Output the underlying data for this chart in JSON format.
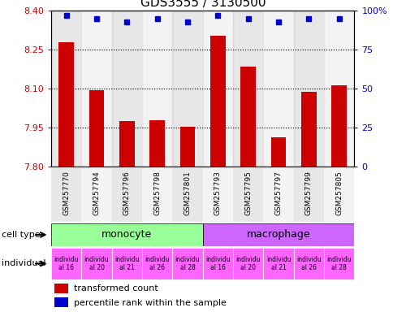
{
  "title": "GDS3555 / 3130500",
  "samples": [
    "GSM257770",
    "GSM257794",
    "GSM257796",
    "GSM257798",
    "GSM257801",
    "GSM257793",
    "GSM257795",
    "GSM257797",
    "GSM257799",
    "GSM257805"
  ],
  "bar_values": [
    8.28,
    8.095,
    7.975,
    7.98,
    7.955,
    8.305,
    8.185,
    7.915,
    8.09,
    8.115
  ],
  "percentile_values": [
    97,
    95,
    93,
    95,
    93,
    97,
    95,
    93,
    95,
    95
  ],
  "bar_color": "#cc0000",
  "dot_color": "#0000cc",
  "ymin": 7.8,
  "ymax": 8.4,
  "y_ticks": [
    7.8,
    7.95,
    8.1,
    8.25,
    8.4
  ],
  "y_right_ticks": [
    0,
    25,
    50,
    75,
    100
  ],
  "cell_type_colors": {
    "monocyte": "#99ff99",
    "macrophage": "#cc66ff"
  },
  "individual_color": "#ff66ff",
  "bar_color_legend": "#cc0000",
  "dot_color_legend": "#0000cc",
  "legend_bar_label": "transformed count",
  "legend_dot_label": "percentile rank within the sample",
  "individuals_short": [
    "individu\nal 16",
    "individu\nal 20",
    "individu\nal 21",
    "individu\nal 26",
    "individu\nal 28",
    "individu\nal 16",
    "individu\nal 20",
    "individu\nal 21",
    "individu\nal 26",
    "individu\nal 28"
  ]
}
